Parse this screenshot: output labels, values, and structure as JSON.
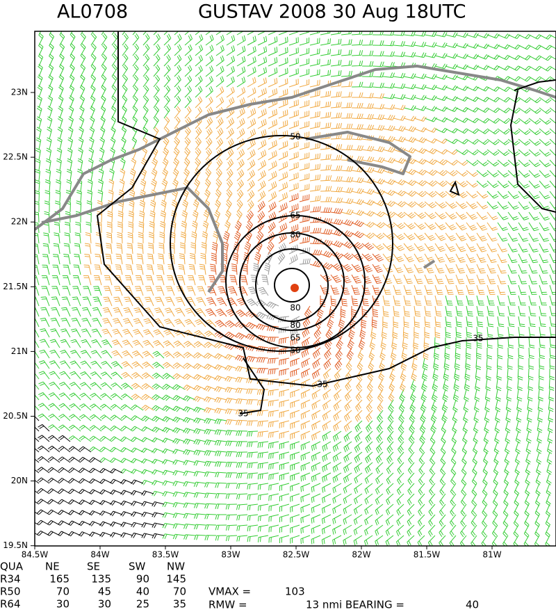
{
  "title": {
    "storm_id": "AL0708",
    "name_time": "GUSTAV 2008 30 Aug 18UTC"
  },
  "map": {
    "lat_labels": [
      "23N",
      "22.5N",
      "22N",
      "21.5N",
      "21N",
      "20.5N",
      "20N",
      "19.5N"
    ],
    "lon_labels": [
      "84.5W",
      "84W",
      "83.5W",
      "83W",
      "82.5W",
      "82W",
      "81.5W",
      "81W"
    ],
    "contour_labels": [
      "50",
      "65",
      "80",
      "80",
      "80",
      "65",
      "50",
      "35",
      "35",
      "35"
    ]
  },
  "table": {
    "header": [
      "QUA",
      "NE",
      "SE",
      "SW",
      "NW"
    ],
    "rows": [
      [
        "R34",
        "165",
        "135",
        "90",
        "145"
      ],
      [
        "R50",
        "70",
        "45",
        "40",
        "70"
      ],
      [
        "R64",
        "30",
        "30",
        "25",
        "35"
      ]
    ]
  },
  "stats": {
    "vmax_label": "VMAX =",
    "vmax": "103",
    "rmw_label": "RMW =",
    "rmw": "13 nmi BEARING =",
    "bearing": "40"
  }
}
